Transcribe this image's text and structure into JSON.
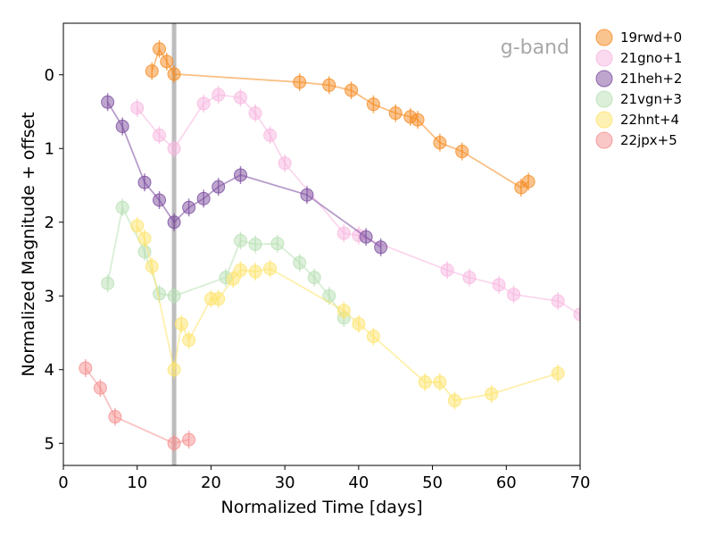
{
  "chart_data": {
    "type": "scatter",
    "title": "",
    "annotation": "g-band",
    "xlabel": "Normalized Time [days]",
    "ylabel": "Normalized Magnitude + offset",
    "xlim": [
      0,
      70
    ],
    "ylim": [
      5.3,
      -0.7
    ],
    "y_inverted": true,
    "xticks": [
      0,
      10,
      20,
      30,
      40,
      50,
      60,
      70
    ],
    "yticks": [
      0,
      1,
      2,
      3,
      4,
      5
    ],
    "vertical_line_x": 15,
    "grid": false,
    "legend_position": "outside-right",
    "series": [
      {
        "name": "19rwd+0",
        "color": "#f58a1f",
        "x": [
          12,
          13,
          14,
          15,
          32,
          36,
          39,
          42,
          45,
          47,
          48,
          51,
          54,
          62,
          63
        ],
        "y": [
          -0.05,
          -0.35,
          -0.18,
          -0.01,
          0.1,
          0.14,
          0.21,
          0.4,
          0.52,
          0.57,
          0.61,
          0.92,
          1.04,
          1.53,
          1.45
        ]
      },
      {
        "name": "21gno+1",
        "color": "#f7b6e0",
        "x": [
          10,
          13,
          15,
          19,
          21,
          24,
          26,
          28,
          30,
          38,
          40,
          52,
          55,
          59,
          61,
          67,
          70
        ],
        "y": [
          0.45,
          0.82,
          1.0,
          0.39,
          0.27,
          0.31,
          0.52,
          0.82,
          1.2,
          2.15,
          2.18,
          2.65,
          2.75,
          2.85,
          2.98,
          3.07,
          3.25
        ]
      },
      {
        "name": "21heh+2",
        "color": "#7b4b9e",
        "x": [
          6,
          8,
          11,
          13,
          15,
          17,
          19,
          21,
          24,
          33,
          41,
          43
        ],
        "y": [
          0.37,
          0.7,
          1.46,
          1.7,
          2.0,
          1.8,
          1.68,
          1.52,
          1.36,
          1.63,
          2.2,
          2.34
        ]
      },
      {
        "name": "21vgn+3",
        "color": "#b8e0b4",
        "x": [
          6,
          8,
          11,
          13,
          15,
          22,
          24,
          26,
          29,
          32,
          34,
          36,
          38
        ],
        "y": [
          2.83,
          1.8,
          2.4,
          2.97,
          3.0,
          2.75,
          2.25,
          2.3,
          2.29,
          2.55,
          2.75,
          3.0,
          3.3
        ]
      },
      {
        "name": "22hnt+4",
        "color": "#fde36a",
        "x": [
          10,
          11,
          12,
          15,
          16,
          17,
          20,
          21,
          23,
          24,
          26,
          28,
          38,
          40,
          42,
          49,
          51,
          53,
          58,
          67
        ],
        "y": [
          2.05,
          2.22,
          2.6,
          4.0,
          3.38,
          3.6,
          3.04,
          3.04,
          2.77,
          2.65,
          2.67,
          2.63,
          3.2,
          3.38,
          3.55,
          4.17,
          4.17,
          4.42,
          4.33,
          4.05
        ]
      },
      {
        "name": "22jpx+5",
        "color": "#f58f8f",
        "x": [
          3,
          5,
          7,
          15,
          17
        ],
        "y": [
          3.98,
          4.25,
          4.64,
          5.0,
          4.95
        ]
      }
    ]
  }
}
